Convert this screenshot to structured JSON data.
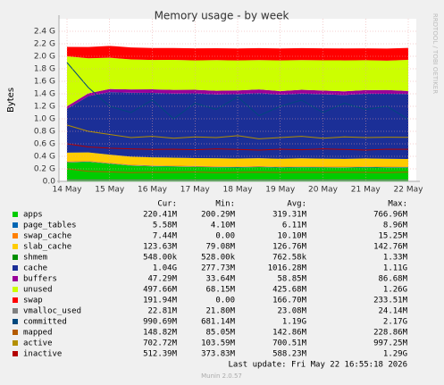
{
  "chart_data": {
    "type": "area",
    "title": "Memory usage - by week",
    "y_label": "Bytes",
    "side_text": "RRDTOOL / TOBI OETIKER",
    "categories": [
      "14 May",
      null,
      "15 May",
      null,
      "16 May",
      null,
      "17 May",
      null,
      "18 May",
      null,
      "19 May",
      null,
      "20 May",
      null,
      "21 May",
      null,
      "22 May"
    ],
    "ylim": [
      0,
      2600000000
    ],
    "yticks": [
      {
        "value": 0,
        "label": "0.0"
      },
      {
        "value": 200000000,
        "label": "0.2 G"
      },
      {
        "value": 400000000,
        "label": "0.4 G"
      },
      {
        "value": 600000000,
        "label": "0.6 G"
      },
      {
        "value": 800000000,
        "label": "0.8 G"
      },
      {
        "value": 1000000000,
        "label": "1.0 G"
      },
      {
        "value": 1200000000,
        "label": "1.2 G"
      },
      {
        "value": 1400000000,
        "label": "1.4 G"
      },
      {
        "value": 1600000000,
        "label": "1.6 G"
      },
      {
        "value": 1800000000,
        "label": "1.8 G"
      },
      {
        "value": 2000000000,
        "label": "2.0 G"
      },
      {
        "value": 2200000000,
        "label": "2.2 G"
      },
      {
        "value": 2400000000,
        "label": "2.4 G"
      }
    ],
    "grid": true,
    "stats_columns": [
      "Cur:",
      "Min:",
      "Avg:",
      "Max:"
    ],
    "series": [
      {
        "name": "apps",
        "color": "#00cc00",
        "style": "area",
        "stats": [
          "220.41M",
          "200.29M",
          "319.31M",
          "766.96M"
        ],
        "values": [
          300000000,
          310000000,
          280000000,
          250000000,
          240000000,
          235000000,
          230000000,
          225000000,
          222000000,
          228000000,
          220000000,
          225000000,
          221000000,
          219000000,
          224000000,
          220000000,
          220410000
        ]
      },
      {
        "name": "page_tables",
        "color": "#0066b3",
        "style": "area",
        "stats": [
          "5.58M",
          "4.10M",
          "6.11M",
          "8.96M"
        ],
        "values": [
          6500000,
          6300000,
          6200000,
          6100000,
          6000000,
          6100000,
          6000000,
          6200000,
          6100000,
          6000000,
          6100000,
          6200000,
          6000000,
          6100000,
          6000000,
          6100000,
          5580000
        ]
      },
      {
        "name": "swap_cache",
        "color": "#ff8000",
        "style": "area",
        "stats": [
          "7.44M",
          "0.00",
          "10.10M",
          "15.25M"
        ],
        "values": [
          12000000,
          11000000,
          10000000,
          10500000,
          10000000,
          10200000,
          9800000,
          10100000,
          10000000,
          10300000,
          9900000,
          10200000,
          10000000,
          10100000,
          9900000,
          10000000,
          7440000
        ]
      },
      {
        "name": "slab_cache",
        "color": "#ffcc00",
        "style": "area",
        "stats": [
          "123.63M",
          "79.08M",
          "126.76M",
          "142.76M"
        ],
        "values": [
          140000000,
          135000000,
          130000000,
          128000000,
          127000000,
          126000000,
          125000000,
          127000000,
          126000000,
          125000000,
          124000000,
          126000000,
          125000000,
          124000000,
          126000000,
          124000000,
          123630000
        ]
      },
      {
        "name": "shmem",
        "color": "#008f00",
        "style": "area",
        "stats": [
          "548.00k",
          "528.00k",
          "762.58k",
          "1.33M"
        ],
        "values": [
          760000,
          700000,
          650000,
          600000,
          580000,
          560000,
          550000,
          570000,
          560000,
          550000,
          560000,
          550000,
          555000,
          560000,
          550000,
          552000,
          548000
        ]
      },
      {
        "name": "cache",
        "color": "#1b2f97",
        "style": "area",
        "stats": [
          "1.04G",
          "277.73M",
          "1016.28M",
          "1.11G"
        ],
        "values": [
          700000000,
          900000000,
          1000000000,
          1020000000,
          1030000000,
          1025000000,
          1035000000,
          1020000000,
          1030000000,
          1040000000,
          1025000000,
          1035000000,
          1030000000,
          1020000000,
          1035000000,
          1040000000,
          1040000000
        ]
      },
      {
        "name": "buffers",
        "color": "#990099",
        "style": "area",
        "stats": [
          "47.29M",
          "33.64M",
          "58.85M",
          "86.68M"
        ],
        "values": [
          40000000,
          45000000,
          50000000,
          55000000,
          58000000,
          60000000,
          58000000,
          60000000,
          59000000,
          60000000,
          58000000,
          61000000,
          59000000,
          60000000,
          58000000,
          60000000,
          47290000
        ]
      },
      {
        "name": "unused",
        "color": "#ccff00",
        "style": "area",
        "stats": [
          "497.66M",
          "68.15M",
          "425.68M",
          "1.26G"
        ],
        "values": [
          800000000,
          560000000,
          500000000,
          480000000,
          470000000,
          480000000,
          470000000,
          490000000,
          480000000,
          470000000,
          490000000,
          475000000,
          485000000,
          495000000,
          478000000,
          470000000,
          497660000
        ]
      },
      {
        "name": "swap",
        "color": "#ff0000",
        "style": "area",
        "stats": [
          "191.94M",
          "0.00",
          "166.70M",
          "233.51M"
        ],
        "values": [
          150000000,
          180000000,
          190000000,
          190000000,
          191000000,
          190000000,
          192000000,
          190000000,
          191000000,
          190000000,
          192000000,
          191000000,
          190000000,
          191000000,
          190000000,
          192000000,
          191940000
        ]
      },
      {
        "name": "vmalloc_used",
        "color": "#808080",
        "style": "line",
        "stats": [
          "22.81M",
          "21.80M",
          "23.08M",
          "24.14M"
        ],
        "values": [
          22000000,
          23000000,
          23000000,
          24000000,
          23000000,
          22000000,
          23000000,
          24000000,
          23000000,
          22000000,
          23000000,
          24000000,
          23000000,
          22000000,
          23000000,
          24000000,
          22810000
        ]
      },
      {
        "name": "committed",
        "color": "#00487d",
        "style": "line",
        "stats": [
          "990.69M",
          "681.14M",
          "1.19G",
          "2.17G"
        ],
        "values": [
          1900000000,
          1500000000,
          1200000000,
          1100000000,
          1300000000,
          1000000000,
          1250000000,
          1150000000,
          1350000000,
          1050000000,
          1200000000,
          1300000000,
          1100000000,
          1250000000,
          1150000000,
          1200000000,
          990690000
        ]
      },
      {
        "name": "mapped",
        "color": "#b35a00",
        "style": "line",
        "stats": [
          "148.82M",
          "85.05M",
          "142.86M",
          "228.86M"
        ],
        "values": [
          200000000,
          160000000,
          150000000,
          140000000,
          145000000,
          142000000,
          148000000,
          140000000,
          143000000,
          146000000,
          141000000,
          144000000,
          142000000,
          145000000,
          143000000,
          140000000,
          148820000
        ]
      },
      {
        "name": "active",
        "color": "#b38f00",
        "style": "line",
        "stats": [
          "702.72M",
          "103.59M",
          "700.51M",
          "997.25M"
        ],
        "values": [
          900000000,
          800000000,
          750000000,
          700000000,
          720000000,
          690000000,
          710000000,
          700000000,
          730000000,
          680000000,
          700000000,
          720000000,
          690000000,
          710000000,
          700000000,
          705000000,
          702720000
        ]
      },
      {
        "name": "inactive",
        "color": "#b30000",
        "style": "line",
        "stats": [
          "512.39M",
          "373.83M",
          "588.23M",
          "1.29G"
        ],
        "values": [
          600000000,
          550000000,
          530000000,
          520000000,
          510000000,
          515000000,
          505000000,
          520000000,
          510000000,
          500000000,
          515000000,
          505000000,
          520000000,
          510000000,
          500000000,
          515000000,
          512390000
        ]
      }
    ],
    "last_update": "Last update: Fri May 22 16:55:18 2026",
    "footer": "Munin 2.0.57"
  }
}
